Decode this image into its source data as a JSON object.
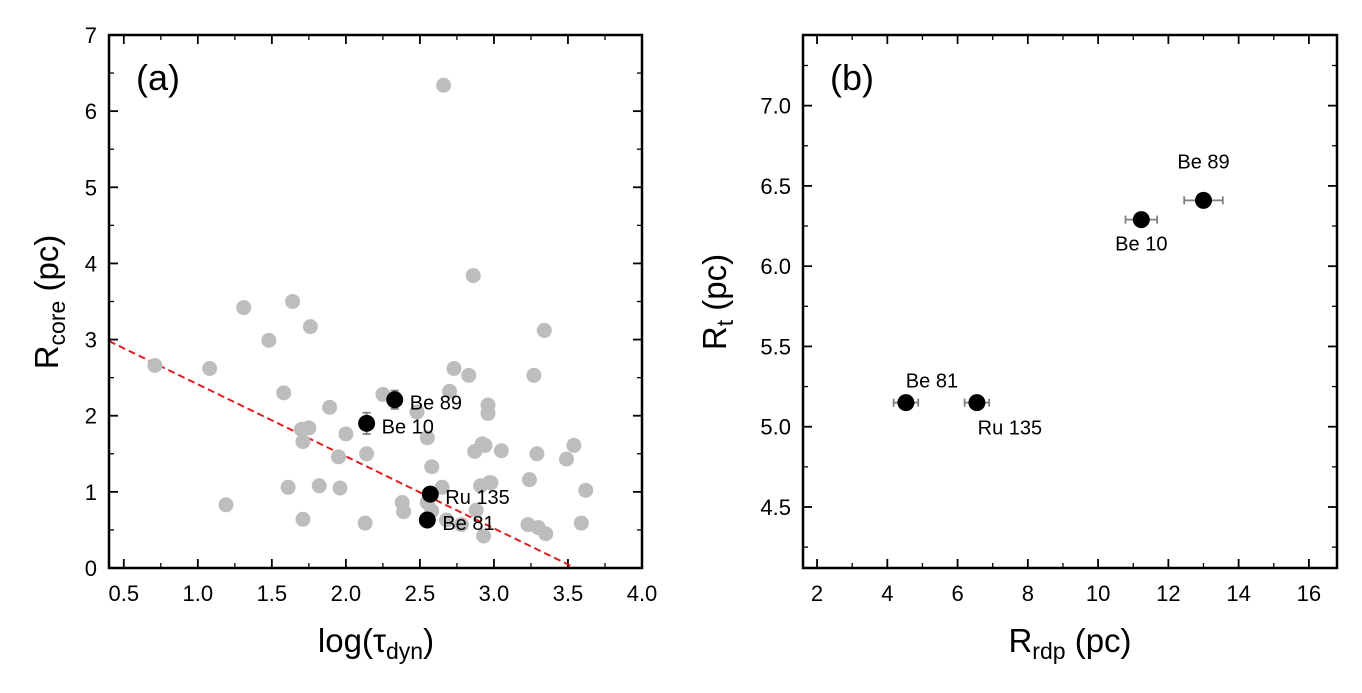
{
  "colors": {
    "background_points": "#bdbdbd",
    "highlight_points": "#000000",
    "error_bars": "#808080",
    "fit_line": "#e31a1c"
  },
  "chart_data": [
    {
      "type": "scatter",
      "panel_label": "(a)",
      "xlabel": {
        "main": "log(τ",
        "sub": "dyn",
        "close": ")"
      },
      "ylabel": {
        "main": "R",
        "sub": "core",
        "tail": " (pc)"
      },
      "xlim": [
        0.4,
        4.0
      ],
      "ylim": [
        0,
        7
      ],
      "xticks": [
        0.5,
        1.0,
        1.5,
        2.0,
        2.5,
        3.0,
        3.5,
        4.0
      ],
      "xtick_labels": [
        "0.5",
        "1.0",
        "1.5",
        "2.0",
        "2.5",
        "3.0",
        "3.5",
        "4.0"
      ],
      "yticks": [
        0,
        1,
        2,
        3,
        4,
        5,
        6,
        7
      ],
      "ytick_labels": [
        "0",
        "1",
        "2",
        "3",
        "4",
        "5",
        "6",
        "7"
      ],
      "fit_line": {
        "x": [
          0.4,
          3.55
        ],
        "y": [
          2.98,
          0.0
        ]
      },
      "background_points": {
        "x": [
          0.71,
          1.08,
          1.19,
          1.31,
          1.48,
          1.58,
          1.61,
          1.64,
          1.7,
          1.71,
          1.71,
          1.75,
          1.76,
          1.82,
          1.89,
          1.95,
          1.96,
          2.0,
          2.13,
          2.14,
          2.25,
          2.38,
          2.39,
          2.48,
          2.55,
          2.55,
          2.58,
          2.58,
          2.65,
          2.66,
          2.68,
          2.7,
          2.73,
          2.78,
          2.83,
          2.86,
          2.87,
          2.88,
          2.91,
          2.92,
          2.93,
          2.94,
          2.96,
          2.96,
          2.97,
          2.98,
          3.05,
          3.23,
          3.24,
          3.27,
          3.29,
          3.3,
          3.34,
          3.35,
          3.49,
          3.54,
          3.59,
          3.62
        ],
        "y": [
          2.66,
          2.62,
          0.83,
          3.42,
          2.99,
          2.3,
          1.06,
          3.5,
          1.82,
          1.66,
          0.64,
          1.84,
          3.17,
          1.08,
          2.11,
          1.46,
          1.05,
          1.76,
          0.59,
          1.5,
          2.28,
          0.86,
          0.74,
          2.05,
          1.71,
          0.86,
          1.33,
          0.75,
          1.06,
          6.34,
          0.63,
          2.32,
          2.62,
          0.57,
          2.53,
          3.84,
          1.53,
          0.76,
          1.08,
          1.63,
          0.42,
          1.61,
          2.14,
          2.03,
          1.12,
          1.12,
          1.54,
          0.57,
          1.16,
          2.53,
          1.5,
          0.53,
          3.12,
          0.45,
          1.43,
          1.61,
          0.59,
          1.02
        ]
      },
      "highlight_points": [
        {
          "name": "Be 89",
          "x": 2.33,
          "y": 2.21,
          "yerr": 0.12
        },
        {
          "name": "Be 10",
          "x": 2.14,
          "y": 1.9,
          "yerr": 0.14
        },
        {
          "name": "Ru 135",
          "x": 2.57,
          "y": 0.97,
          "yerr": 0.07
        },
        {
          "name": "Be 81",
          "x": 2.55,
          "y": 0.63,
          "yerr": 0.06
        }
      ]
    },
    {
      "type": "scatter",
      "panel_label": "(b)",
      "xlabel": {
        "main": "R",
        "sub": "rdp",
        "tail": " (pc)"
      },
      "ylabel": {
        "main": "R",
        "sub": "t",
        "tail": " (pc)"
      },
      "xlim": [
        1.6,
        16.8
      ],
      "ylim": [
        4.12,
        7.44
      ],
      "xticks": [
        2,
        4,
        6,
        8,
        10,
        12,
        14,
        16
      ],
      "xtick_labels": [
        "2",
        "4",
        "6",
        "8",
        "10",
        "12",
        "14",
        "16"
      ],
      "yticks": [
        4.5,
        5.0,
        5.5,
        6.0,
        6.5,
        7.0
      ],
      "ytick_labels": [
        "4.5",
        "5.0",
        "5.5",
        "6.0",
        "6.5",
        "7.0"
      ],
      "points": [
        {
          "name": "Be 89",
          "x": 13.0,
          "y": 6.41,
          "xerr": 0.55
        },
        {
          "name": "Be 10",
          "x": 11.23,
          "y": 6.29,
          "xerr": 0.45
        },
        {
          "name": "Be 81",
          "x": 4.53,
          "y": 5.15,
          "xerr": 0.35
        },
        {
          "name": "Ru 135",
          "x": 6.55,
          "y": 5.15,
          "xerr": 0.35
        }
      ]
    }
  ]
}
